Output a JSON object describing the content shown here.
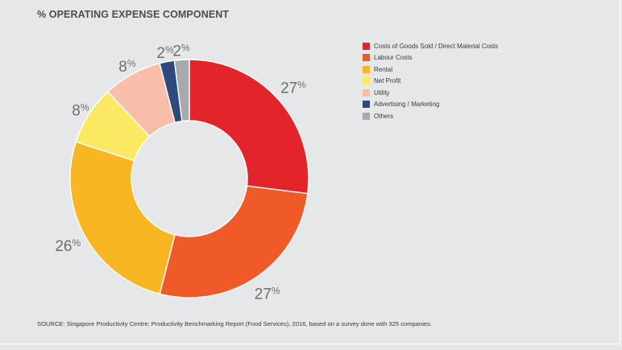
{
  "title": "% OPERATING EXPENSE COMPONENT",
  "source": "SOURCE: Singapore Productivity Centre; Productivity Benchmarking Report (Food Services), 2016, based on a survey done with 325 companies.",
  "chart_data": {
    "type": "pie",
    "donut": true,
    "title": "% OPERATING EXPENSE COMPONENT",
    "legend_position": "right",
    "unit": "%",
    "slices": [
      {
        "label": "Costs of Goods Sold / Direct Material Costs",
        "value": 27,
        "display": "27",
        "color": "#e3242b"
      },
      {
        "label": "Labour Costs",
        "value": 27,
        "display": "27",
        "color": "#f05a28"
      },
      {
        "label": "Rental",
        "value": 26,
        "display": "26",
        "color": "#f8b722"
      },
      {
        "label": "Net Profit",
        "value": 8,
        "display": "8",
        "color": "#fbe964"
      },
      {
        "label": "Utility",
        "value": 8,
        "display": "8",
        "color": "#f9bea9"
      },
      {
        "label": "Advertising / Marketing",
        "value": 2,
        "display": "2",
        "color": "#2e4a7d"
      },
      {
        "label": "Others",
        "value": 2,
        "display": "2",
        "color": "#a7a9ac"
      }
    ]
  }
}
